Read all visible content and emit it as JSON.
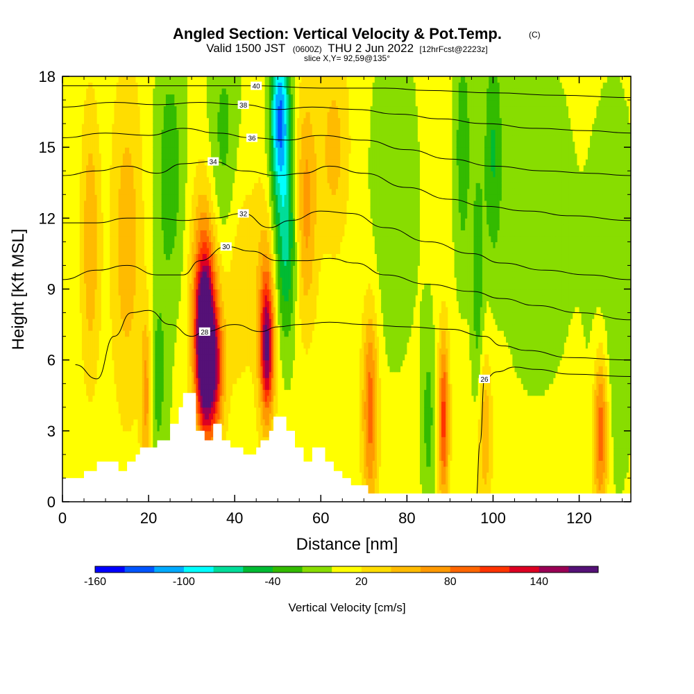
{
  "chart_data": {
    "type": "heatmap",
    "title": "Angled Section: Vertical Velocity & Pot.Temp.",
    "title_suffix": "(C)",
    "subtitle_main": "Valid 1500 JST",
    "subtitle_zulu": "(0600Z)",
    "subtitle_date": "THU 2 Jun 2022",
    "subtitle_forecast": "[12hrFcst@2223z]",
    "subtitle_slice": "slice X,Y= 92,59@135°",
    "xlabel": "Distance [nm]",
    "ylabel": "Height [Kft MSL]",
    "xlim": [
      0,
      132
    ],
    "ylim": [
      0,
      18
    ],
    "xticks": [
      "0",
      "20",
      "40",
      "60",
      "80",
      "100",
      "120"
    ],
    "yticks": [
      "0",
      "3",
      "6",
      "9",
      "12",
      "15",
      "18"
    ],
    "colorbar": {
      "title": "Vertical Velocity [cm/s]",
      "min": -160,
      "max": 180,
      "step": 20,
      "labels": [
        "-160",
        "-100",
        "-40",
        "20",
        "80",
        "140"
      ],
      "label_values": [
        -160,
        -100,
        -40,
        20,
        80,
        140
      ],
      "colors": [
        "#0000ff",
        "#0055ff",
        "#00aaff",
        "#00ffff",
        "#00dd99",
        "#00bb33",
        "#33bb00",
        "#88dd00",
        "#ffff00",
        "#ffdd00",
        "#ffbb00",
        "#ff9900",
        "#ff6600",
        "#ff3300",
        "#dd0022",
        "#990055",
        "#551177"
      ]
    },
    "velocity_features": [
      {
        "x": 33,
        "z": 6.5,
        "w": 175,
        "sx": 1.4,
        "sz": 2.4
      },
      {
        "x": 33,
        "z": 8.5,
        "w": 90,
        "sx": 2.2,
        "sz": 3.5
      },
      {
        "x": 35.5,
        "z": 5.5,
        "w": 95,
        "sx": 1.4,
        "sz": 2.0
      },
      {
        "x": 47.5,
        "z": 6.5,
        "w": 120,
        "sx": 1.1,
        "sz": 2.0
      },
      {
        "x": 47.5,
        "z": 8.5,
        "w": 55,
        "sx": 1.8,
        "sz": 3.5
      },
      {
        "x": 22,
        "z": 5.0,
        "w": -35,
        "sx": 1.8,
        "sz": 3.0
      },
      {
        "x": 25,
        "z": 14,
        "w": -40,
        "sx": 2.5,
        "sz": 4.0
      },
      {
        "x": 38,
        "z": 14,
        "w": -55,
        "sx": 3.0,
        "sz": 4.0
      },
      {
        "x": 50.5,
        "z": 16.5,
        "w": -95,
        "sx": 1.5,
        "sz": 2.0
      },
      {
        "x": 50.5,
        "z": 13,
        "w": -55,
        "sx": 2.0,
        "sz": 4.0
      },
      {
        "x": 52.5,
        "z": 11,
        "w": -45,
        "sx": 1.6,
        "sz": 3.0
      },
      {
        "x": 56.5,
        "z": 12.5,
        "w": 60,
        "sx": 1.8,
        "sz": 3.5
      },
      {
        "x": 63,
        "z": 15,
        "w": 40,
        "sx": 2.5,
        "sz": 3.0
      },
      {
        "x": 71.5,
        "z": 4.0,
        "w": 85,
        "sx": 1.3,
        "sz": 3.0
      },
      {
        "x": 88.5,
        "z": 3.5,
        "w": 100,
        "sx": 0.9,
        "sz": 2.5
      },
      {
        "x": 85,
        "z": 3.5,
        "w": -35,
        "sx": 1.2,
        "sz": 3.0
      },
      {
        "x": 93,
        "z": 15,
        "w": -40,
        "sx": 1.5,
        "sz": 4.0
      },
      {
        "x": 96.5,
        "z": 9,
        "w": -40,
        "sx": 1.0,
        "sz": 4.0
      },
      {
        "x": 98,
        "z": 3,
        "w": 50,
        "sx": 1.2,
        "sz": 2.5
      },
      {
        "x": 100,
        "z": 15,
        "w": -45,
        "sx": 1.5,
        "sz": 3.5
      },
      {
        "x": 125,
        "z": 3,
        "w": 95,
        "sx": 1.2,
        "sz": 2.5
      },
      {
        "x": 15,
        "z": 11,
        "w": 45,
        "sx": 2.5,
        "sz": 5.0
      },
      {
        "x": 6.5,
        "z": 11,
        "w": 50,
        "sx": 1.5,
        "sz": 4.0
      },
      {
        "x": 19.5,
        "z": 4.5,
        "w": 70,
        "sx": 0.9,
        "sz": 2.5
      },
      {
        "x": 40,
        "z": 11,
        "w": 45,
        "sx": 3.0,
        "sz": 4.0
      },
      {
        "x": 110,
        "z": 12,
        "w": -25,
        "sx": 6.0,
        "sz": 5.0
      },
      {
        "x": 77,
        "z": 13,
        "w": -25,
        "sx": 4.0,
        "sz": 5.0
      },
      {
        "x": 128,
        "z": 9,
        "w": -25,
        "sx": 4.0,
        "sz": 6.0
      }
    ],
    "terrain": [
      [
        0,
        1.0
      ],
      [
        5,
        1.0
      ],
      [
        5,
        1.3
      ],
      [
        8,
        1.3
      ],
      [
        8,
        1.7
      ],
      [
        13,
        1.7
      ],
      [
        13,
        1.3
      ],
      [
        15,
        1.3
      ],
      [
        15,
        1.7
      ],
      [
        17,
        1.7
      ],
      [
        17,
        2.0
      ],
      [
        18,
        2.0
      ],
      [
        18,
        2.3
      ],
      [
        22,
        2.3
      ],
      [
        22,
        2.6
      ],
      [
        25,
        2.6
      ],
      [
        25,
        3.3
      ],
      [
        27,
        3.3
      ],
      [
        27,
        4.0
      ],
      [
        28,
        4.0
      ],
      [
        28,
        4.6
      ],
      [
        31,
        4.6
      ],
      [
        31,
        3.0
      ],
      [
        33,
        3.0
      ],
      [
        33,
        2.6
      ],
      [
        35,
        2.6
      ],
      [
        35,
        3.3
      ],
      [
        37,
        3.3
      ],
      [
        37,
        2.6
      ],
      [
        39,
        2.6
      ],
      [
        39,
        2.3
      ],
      [
        42,
        2.3
      ],
      [
        42,
        2.0
      ],
      [
        45,
        2.0
      ],
      [
        45,
        2.3
      ],
      [
        46,
        2.3
      ],
      [
        46,
        2.6
      ],
      [
        48,
        2.6
      ],
      [
        48,
        3.0
      ],
      [
        49,
        3.0
      ],
      [
        49,
        3.6
      ],
      [
        52,
        3.6
      ],
      [
        52,
        3.0
      ],
      [
        54,
        3.0
      ],
      [
        54,
        2.3
      ],
      [
        56,
        2.3
      ],
      [
        56,
        1.7
      ],
      [
        58,
        1.7
      ],
      [
        58,
        2.3
      ],
      [
        61,
        2.3
      ],
      [
        61,
        1.7
      ],
      [
        63,
        1.7
      ],
      [
        63,
        1.3
      ],
      [
        65,
        1.3
      ],
      [
        65,
        1.0
      ],
      [
        67,
        1.0
      ],
      [
        67,
        0.7
      ],
      [
        71,
        0.7
      ],
      [
        71,
        0.35
      ],
      [
        132,
        0.35
      ]
    ],
    "theta_contours": [
      {
        "label": "26",
        "pts": [
          [
            96,
            0
          ],
          [
            97,
            2.5
          ],
          [
            98,
            5.2
          ],
          [
            101,
            5.5
          ],
          [
            105,
            5.7
          ],
          [
            110,
            5.6
          ],
          [
            118,
            5.4
          ],
          [
            132,
            5.3
          ]
        ]
      },
      {
        "label": "28",
        "pts": [
          [
            3,
            5.8
          ],
          [
            8,
            5.2
          ],
          [
            12,
            7.0
          ],
          [
            16,
            8.0
          ],
          [
            20,
            8.1
          ],
          [
            25,
            7.5
          ],
          [
            30,
            7.0
          ],
          [
            33,
            7.2
          ],
          [
            40,
            7.5
          ],
          [
            46,
            7.2
          ],
          [
            50,
            7.4
          ],
          [
            55,
            7.5
          ],
          [
            62,
            7.6
          ],
          [
            70,
            7.5
          ],
          [
            80,
            7.4
          ],
          [
            90,
            7.3
          ],
          [
            98,
            7.0
          ],
          [
            102,
            6.6
          ],
          [
            108,
            6.4
          ],
          [
            118,
            6.1
          ],
          [
            132,
            6.0
          ]
        ]
      },
      {
        "label": "30",
        "pts": [
          [
            0,
            9.4
          ],
          [
            8,
            9.8
          ],
          [
            15,
            10.0
          ],
          [
            22,
            9.6
          ],
          [
            28,
            9.6
          ],
          [
            32,
            10.2
          ],
          [
            38,
            10.8
          ],
          [
            44,
            10.6
          ],
          [
            50,
            10.2
          ],
          [
            57,
            10.2
          ],
          [
            62,
            10.3
          ],
          [
            68,
            10.1
          ],
          [
            75,
            9.6
          ],
          [
            85,
            9.2
          ],
          [
            95,
            8.9
          ],
          [
            102,
            8.6
          ],
          [
            110,
            8.3
          ],
          [
            120,
            8.0
          ],
          [
            132,
            7.7
          ]
        ]
      },
      {
        "label": "32",
        "pts": [
          [
            0,
            11.8
          ],
          [
            8,
            11.8
          ],
          [
            15,
            12.0
          ],
          [
            22,
            12.0
          ],
          [
            28,
            11.9
          ],
          [
            35,
            12.0
          ],
          [
            42,
            12.2
          ],
          [
            48,
            11.6
          ],
          [
            53,
            11.9
          ],
          [
            60,
            12.3
          ],
          [
            67,
            12.2
          ],
          [
            75,
            11.6
          ],
          [
            85,
            11.0
          ],
          [
            95,
            10.5
          ],
          [
            102,
            10.1
          ],
          [
            112,
            9.8
          ],
          [
            122,
            9.6
          ],
          [
            132,
            9.4
          ]
        ]
      },
      {
        "label": "34",
        "pts": [
          [
            0,
            13.8
          ],
          [
            8,
            14.0
          ],
          [
            15,
            14.2
          ],
          [
            22,
            13.9
          ],
          [
            28,
            14.3
          ],
          [
            35,
            14.4
          ],
          [
            42,
            14.0
          ],
          [
            50,
            13.8
          ],
          [
            56,
            13.9
          ],
          [
            62,
            14.2
          ],
          [
            70,
            13.9
          ],
          [
            80,
            13.3
          ],
          [
            90,
            12.8
          ],
          [
            98,
            12.5
          ],
          [
            108,
            12.3
          ],
          [
            118,
            12.1
          ],
          [
            132,
            11.9
          ]
        ]
      },
      {
        "label": "36",
        "pts": [
          [
            0,
            15.4
          ],
          [
            10,
            15.6
          ],
          [
            20,
            15.5
          ],
          [
            28,
            15.8
          ],
          [
            36,
            15.6
          ],
          [
            44,
            15.4
          ],
          [
            52,
            15.3
          ],
          [
            60,
            15.5
          ],
          [
            70,
            15.3
          ],
          [
            80,
            14.9
          ],
          [
            90,
            14.5
          ],
          [
            100,
            14.2
          ],
          [
            112,
            14.0
          ],
          [
            122,
            13.9
          ],
          [
            132,
            13.8
          ]
        ]
      },
      {
        "label": "38",
        "pts": [
          [
            0,
            16.7
          ],
          [
            12,
            16.9
          ],
          [
            22,
            16.8
          ],
          [
            32,
            16.9
          ],
          [
            42,
            16.8
          ],
          [
            50,
            16.6
          ],
          [
            58,
            16.7
          ],
          [
            68,
            16.6
          ],
          [
            78,
            16.4
          ],
          [
            88,
            16.2
          ],
          [
            98,
            16.0
          ],
          [
            110,
            15.8
          ],
          [
            122,
            15.7
          ],
          [
            132,
            15.6
          ]
        ]
      },
      {
        "label": "40",
        "pts": [
          [
            0,
            17.6
          ],
          [
            15,
            17.6
          ],
          [
            30,
            17.6
          ],
          [
            45,
            17.6
          ],
          [
            60,
            17.5
          ],
          [
            75,
            17.5
          ],
          [
            85,
            17.4
          ],
          [
            100,
            17.3
          ],
          [
            115,
            17.2
          ],
          [
            132,
            17.1
          ]
        ]
      }
    ]
  }
}
